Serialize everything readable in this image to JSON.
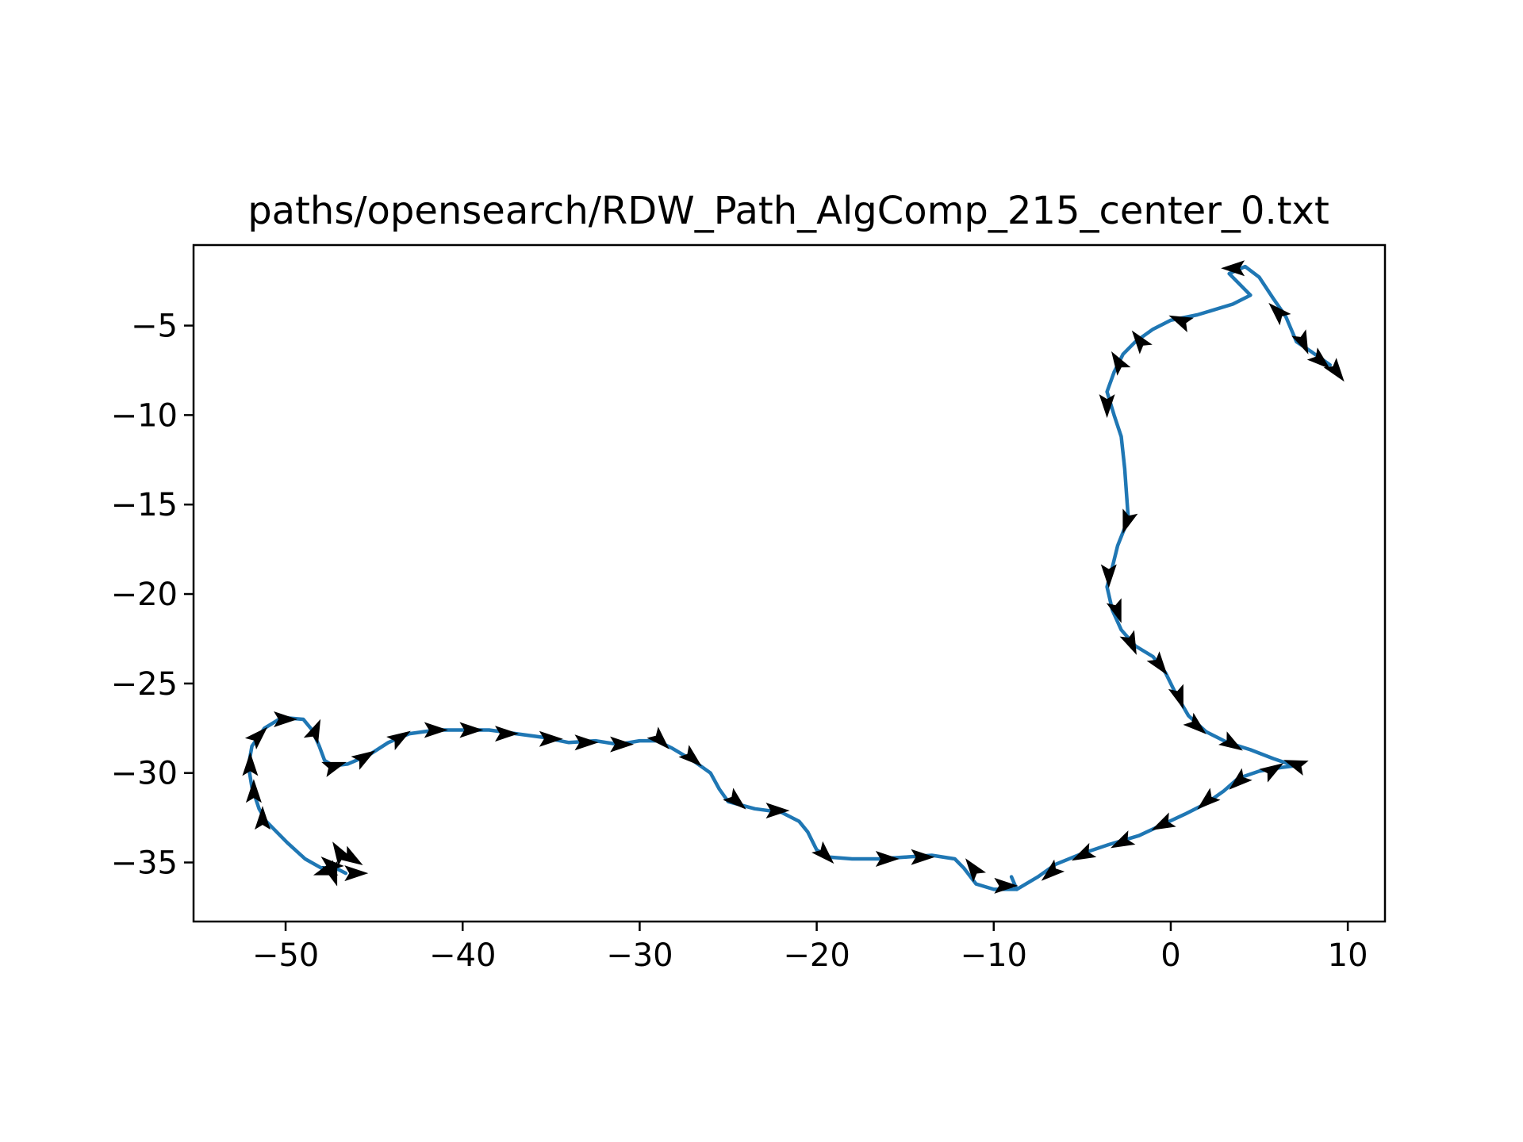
{
  "chart_data": {
    "type": "line",
    "title": "paths/opensearch/RDW_Path_AlgComp_215_center_0.txt",
    "xlabel": "",
    "ylabel": "",
    "xlim": [
      -55.2,
      12.1
    ],
    "ylim": [
      -38.3,
      -0.5
    ],
    "xticks": [
      -50,
      -40,
      -30,
      -20,
      -10,
      0,
      10
    ],
    "yticks": [
      -35,
      -30,
      -25,
      -20,
      -15,
      -10,
      -5
    ],
    "grid": false,
    "legend": "none",
    "series": [
      {
        "color": "#1f77b4",
        "points": [
          [
            -9.0,
            -35.8
          ],
          [
            -8.7,
            -36.5
          ],
          [
            -10.0,
            -36.5
          ],
          [
            -11.0,
            -36.2
          ],
          [
            -11.7,
            -35.3
          ],
          [
            -12.2,
            -34.8
          ],
          [
            -13.5,
            -34.6
          ],
          [
            -15.0,
            -34.7
          ],
          [
            -16.5,
            -34.8
          ],
          [
            -18.0,
            -34.8
          ],
          [
            -19.3,
            -34.7
          ],
          [
            -20.0,
            -34.3
          ],
          [
            -20.5,
            -33.3
          ],
          [
            -21.0,
            -32.7
          ],
          [
            -22.0,
            -32.2
          ],
          [
            -23.5,
            -32.0
          ],
          [
            -25.0,
            -31.6
          ],
          [
            -25.5,
            -30.9
          ],
          [
            -26.0,
            -30.0
          ],
          [
            -27.0,
            -29.3
          ],
          [
            -28.2,
            -28.6
          ],
          [
            -29.0,
            -28.2
          ],
          [
            -30.0,
            -28.2
          ],
          [
            -31.2,
            -28.4
          ],
          [
            -32.5,
            -28.2
          ],
          [
            -34.0,
            -28.3
          ],
          [
            -35.5,
            -28.0
          ],
          [
            -37.0,
            -27.8
          ],
          [
            -38.5,
            -27.6
          ],
          [
            -40.0,
            -27.6
          ],
          [
            -41.5,
            -27.6
          ],
          [
            -43.0,
            -27.8
          ],
          [
            -44.2,
            -28.3
          ],
          [
            -45.3,
            -29.0
          ],
          [
            -46.5,
            -29.5
          ],
          [
            -47.3,
            -29.6
          ],
          [
            -47.8,
            -29.3
          ],
          [
            -48.1,
            -28.5
          ],
          [
            -48.5,
            -27.6
          ],
          [
            -49.0,
            -27.0
          ],
          [
            -50.2,
            -26.9
          ],
          [
            -51.2,
            -27.5
          ],
          [
            -51.9,
            -28.5
          ],
          [
            -52.1,
            -29.6
          ],
          [
            -51.9,
            -30.8
          ],
          [
            -51.5,
            -32.0
          ],
          [
            -51.1,
            -32.7
          ],
          [
            -49.9,
            -33.9
          ],
          [
            -48.9,
            -34.8
          ],
          [
            -48.0,
            -35.3
          ],
          [
            -47.2,
            -35.3
          ],
          [
            -46.6,
            -35.6
          ]
        ]
      },
      {
        "color": "#1f77b4",
        "points": [
          [
            -8.7,
            -36.5
          ],
          [
            -7.5,
            -35.8
          ],
          [
            -6.5,
            -35.1
          ],
          [
            -5.0,
            -34.5
          ],
          [
            -3.5,
            -34.0
          ],
          [
            -1.8,
            -33.5
          ],
          [
            -0.5,
            -32.9
          ],
          [
            0.8,
            -32.3
          ],
          [
            2.0,
            -31.7
          ],
          [
            3.0,
            -31.0
          ],
          [
            3.8,
            -30.3
          ],
          [
            5.0,
            -29.9
          ],
          [
            6.2,
            -29.7
          ],
          [
            7.0,
            -29.6
          ],
          [
            5.8,
            -29.2
          ],
          [
            4.5,
            -28.7
          ],
          [
            3.2,
            -28.3
          ],
          [
            2.0,
            -27.7
          ],
          [
            1.0,
            -26.8
          ],
          [
            0.3,
            -25.6
          ],
          [
            -0.3,
            -24.4
          ],
          [
            -1.0,
            -23.5
          ],
          [
            -2.0,
            -22.9
          ],
          [
            -2.8,
            -22.0
          ],
          [
            -3.3,
            -20.9
          ],
          [
            -3.6,
            -19.6
          ],
          [
            -3.3,
            -18.5
          ],
          [
            -3.0,
            -17.3
          ],
          [
            -2.4,
            -15.8
          ],
          [
            -2.6,
            -13.0
          ],
          [
            -2.8,
            -11.2
          ],
          [
            -3.2,
            -10.0
          ],
          [
            -3.6,
            -8.7
          ],
          [
            -3.2,
            -7.6
          ],
          [
            -2.7,
            -6.6
          ],
          [
            -2.0,
            -5.9
          ],
          [
            -1.0,
            -5.2
          ],
          [
            0.0,
            -4.7
          ],
          [
            1.5,
            -4.4
          ],
          [
            3.5,
            -3.8
          ],
          [
            4.5,
            -3.3
          ],
          [
            3.3,
            -2.1
          ],
          [
            4.2,
            -1.7
          ],
          [
            5.0,
            -2.3
          ],
          [
            5.8,
            -3.5
          ],
          [
            6.5,
            -4.5
          ],
          [
            7.1,
            -5.9
          ],
          [
            8.0,
            -6.5
          ],
          [
            9.0,
            -7.2
          ]
        ]
      }
    ],
    "arrows": [
      [
        -9.3,
        -36.3,
        1.0,
        0.0
      ],
      [
        -11.2,
        -35.3,
        -0.6,
        0.8
      ],
      [
        -14.0,
        -34.7,
        1.0,
        0.0
      ],
      [
        -16.0,
        -34.8,
        1.0,
        0.0
      ],
      [
        -19.5,
        -34.6,
        0.7,
        -0.7
      ],
      [
        -22.2,
        -32.1,
        1.0,
        0.0
      ],
      [
        -24.5,
        -31.6,
        0.7,
        -0.6
      ],
      [
        -27.0,
        -29.2,
        0.7,
        -0.6
      ],
      [
        -28.8,
        -28.2,
        0.7,
        -0.7
      ],
      [
        -31.0,
        -28.4,
        1.0,
        0.0
      ],
      [
        -33.0,
        -28.3,
        1.0,
        0.0
      ],
      [
        -35.0,
        -28.1,
        1.0,
        0.0
      ],
      [
        -37.5,
        -27.8,
        1.0,
        0.0
      ],
      [
        -39.5,
        -27.6,
        1.0,
        0.0
      ],
      [
        -41.5,
        -27.6,
        1.0,
        0.0
      ],
      [
        -43.5,
        -28.0,
        0.8,
        0.5
      ],
      [
        -45.5,
        -29.1,
        0.8,
        0.5
      ],
      [
        -47.2,
        -29.6,
        0.9,
        0.3
      ],
      [
        -48.3,
        -27.6,
        0.4,
        0.9
      ],
      [
        -50.0,
        -27.0,
        1.0,
        0.0
      ],
      [
        -51.5,
        -27.9,
        0.7,
        0.7
      ],
      [
        -52.0,
        -29.5,
        0.0,
        1.0
      ],
      [
        -51.8,
        -31.0,
        0.0,
        1.0
      ],
      [
        -51.3,
        -32.5,
        0.0,
        1.0
      ],
      [
        -47.5,
        -35.1,
        -0.7,
        0.6
      ],
      [
        -46.2,
        -34.8,
        0.8,
        -0.5
      ],
      [
        -47.8,
        -35.5,
        -0.9,
        -0.3
      ],
      [
        -46.0,
        -35.6,
        1.0,
        0.0
      ],
      [
        -47.0,
        -34.4,
        -0.5,
        0.8
      ],
      [
        -47.3,
        -35.7,
        0.3,
        -0.9
      ],
      [
        -6.8,
        -35.6,
        -0.7,
        -0.6
      ],
      [
        -5.0,
        -34.6,
        -0.8,
        -0.4
      ],
      [
        -2.8,
        -33.9,
        -0.8,
        -0.4
      ],
      [
        -0.5,
        -32.9,
        -0.8,
        -0.4
      ],
      [
        2.0,
        -31.6,
        -0.7,
        -0.6
      ],
      [
        3.8,
        -30.5,
        -0.7,
        -0.6
      ],
      [
        5.8,
        -29.8,
        0.8,
        0.5
      ],
      [
        7.0,
        -29.5,
        -0.8,
        0.3
      ],
      [
        3.5,
        -28.4,
        0.8,
        -0.5
      ],
      [
        1.5,
        -27.4,
        0.7,
        -0.6
      ],
      [
        0.5,
        -25.8,
        0.3,
        -0.9
      ],
      [
        -0.6,
        -24.0,
        0.6,
        -0.8
      ],
      [
        -2.2,
        -22.8,
        0.4,
        -0.9
      ],
      [
        -3.0,
        -21.0,
        0.3,
        -0.9
      ],
      [
        -3.5,
        -19.0,
        0.0,
        -1.0
      ],
      [
        -2.5,
        -16.0,
        -0.3,
        -0.9
      ],
      [
        -3.6,
        -9.5,
        0.0,
        -1.0
      ],
      [
        -3.0,
        -7.0,
        -0.5,
        0.8
      ],
      [
        -1.8,
        -5.8,
        -0.6,
        0.8
      ],
      [
        0.5,
        -4.7,
        -0.9,
        0.4
      ],
      [
        3.5,
        -1.8,
        -1.0,
        0.0
      ],
      [
        6.0,
        -4.2,
        -0.7,
        0.7
      ],
      [
        7.5,
        -6.0,
        0.4,
        -0.9
      ],
      [
        8.5,
        -7.0,
        0.7,
        -0.6
      ],
      [
        9.4,
        -7.6,
        0.6,
        -0.8
      ]
    ]
  }
}
